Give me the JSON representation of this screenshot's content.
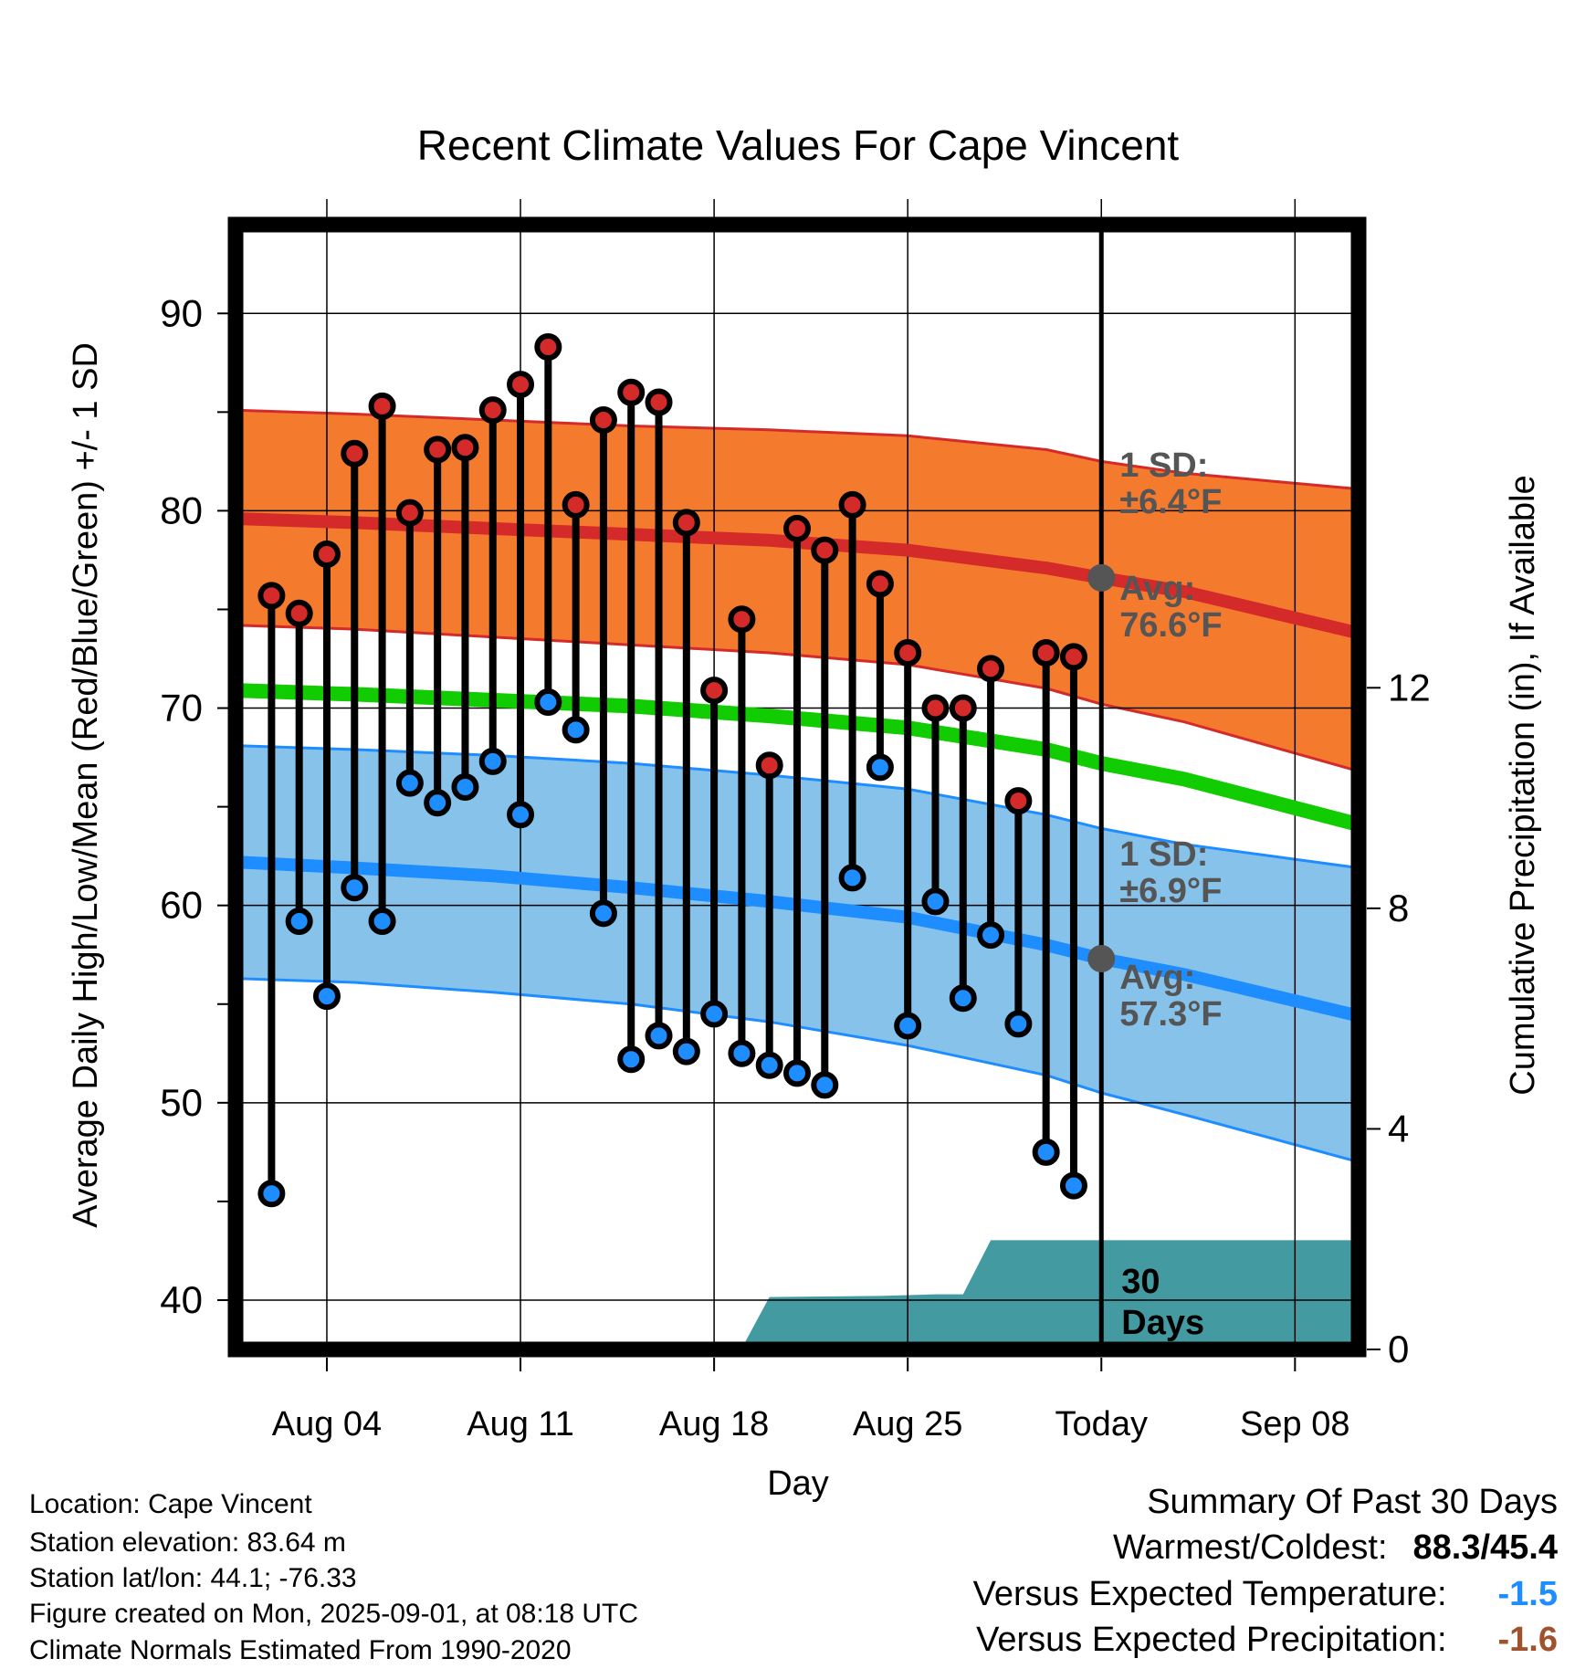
{
  "chart_data": {
    "type": "line",
    "title": "Recent Climate Values For Cape Vincent",
    "xlabel": "Day",
    "ylabel": "Average Daily High/Low/Mean (Red/Blue/Green) +/- 1 SD",
    "y2label": "Cumulative Precipitation (in), If Available",
    "x_ticks": [
      "Aug 04",
      "Aug 11",
      "Aug 18",
      "Aug 25",
      "Today",
      "Sep 08"
    ],
    "x_tick_days": [
      4,
      11,
      18,
      25,
      32,
      39
    ],
    "xlim_days": [
      0.7,
      41.3
    ],
    "today_day": 32,
    "y_ticks": [
      40,
      50,
      60,
      70,
      80,
      90
    ],
    "ylim": [
      37.5,
      94.5
    ],
    "y2_ticks": [
      0,
      4,
      8,
      12
    ],
    "y2lim": [
      0,
      20.4
    ],
    "grid": true,
    "daily_days": [
      2,
      3,
      4,
      5,
      6,
      7,
      8,
      9,
      10,
      11,
      12,
      13,
      14,
      15,
      16,
      17,
      18,
      19,
      20,
      21,
      22,
      23,
      24,
      25,
      26,
      27,
      28,
      29,
      30,
      31
    ],
    "daily_high": [
      75.7,
      74.8,
      77.8,
      82.9,
      85.3,
      79.9,
      83.1,
      83.2,
      85.1,
      86.4,
      88.3,
      80.3,
      84.6,
      86.0,
      85.5,
      79.4,
      70.9,
      74.5,
      67.1,
      79.1,
      78.0,
      80.3,
      76.3,
      72.8,
      70.0,
      70.0,
      72.0,
      65.3,
      72.8,
      72.6
    ],
    "daily_low": [
      45.4,
      59.2,
      55.4,
      60.9,
      59.2,
      66.2,
      65.2,
      66.0,
      67.3,
      64.6,
      70.3,
      68.9,
      59.6,
      52.2,
      53.4,
      52.6,
      54.5,
      52.5,
      51.9,
      51.5,
      50.9,
      61.4,
      67.0,
      53.9,
      60.2,
      55.3,
      58.5,
      54.0,
      47.5,
      45.8
    ],
    "normal_days": [
      0.7,
      5,
      10,
      15,
      20,
      25,
      30,
      32,
      35,
      41.3
    ],
    "normal_high": [
      79.6,
      79.4,
      79.1,
      78.8,
      78.5,
      78.0,
      77.1,
      76.6,
      75.9,
      73.8
    ],
    "normal_high_upper": [
      85.1,
      84.9,
      84.6,
      84.3,
      84.1,
      83.8,
      83.1,
      82.5,
      81.9,
      81.1
    ],
    "normal_high_lower": [
      74.2,
      74.0,
      73.6,
      73.2,
      72.8,
      72.2,
      71.0,
      70.2,
      69.3,
      66.8
    ],
    "normal_mean": [
      70.9,
      70.7,
      70.4,
      70.1,
      69.6,
      69.0,
      67.9,
      67.2,
      66.4,
      64.1
    ],
    "normal_low": [
      62.2,
      61.9,
      61.5,
      60.9,
      60.2,
      59.4,
      58.0,
      57.3,
      56.5,
      54.4
    ],
    "normal_low_upper": [
      68.1,
      67.9,
      67.6,
      67.2,
      66.6,
      65.9,
      64.6,
      63.9,
      63.1,
      61.9
    ],
    "normal_low_lower": [
      56.3,
      56.1,
      55.6,
      55.0,
      54.1,
      52.9,
      51.4,
      50.5,
      49.4,
      47.0
    ],
    "precip_days": [
      0.7,
      18,
      19,
      20,
      24,
      26,
      27,
      28,
      41.3
    ],
    "precip_cumulative": [
      0,
      0,
      0.02,
      0.95,
      0.97,
      1.0,
      1.0,
      1.98,
      1.98
    ],
    "high_sd_label": "1 SD:",
    "high_sd_value": "±6.4°F",
    "high_avg_label": "Avg:",
    "high_avg_value": "76.6°F",
    "low_sd_label": "1 SD:",
    "low_sd_value": "±6.9°F",
    "low_avg_label": "Avg:",
    "low_avg_value": "57.3°F",
    "precip_period_label": "30",
    "precip_period_unit": "Days",
    "colors": {
      "high_band": "#f47a2e",
      "high_line": "#d42a2a",
      "low_band": "#86c2ea",
      "low_line": "#1e8dff",
      "mean_line": "#11cc00",
      "precip_fill": "#449aa1",
      "high_dot": "#d42a2a",
      "low_dot": "#1e8dff",
      "annotation": "#555555"
    }
  },
  "footer": {
    "location": "Location: Cape Vincent",
    "elevation": "Station elevation: 83.64 m",
    "latlon": "Station lat/lon: 44.1; -76.33",
    "created": "Figure created on Mon, 2025-09-01, at 08:18 UTC",
    "normals": "Climate Normals Estimated From 1990-2020"
  },
  "summary": {
    "title": "Summary Of Past 30 Days",
    "warmest_coldest_label": "Warmest/Coldest:",
    "warmest_coldest_value": "88.3/45.4",
    "temp_label": "Versus Expected Temperature:",
    "temp_value": "-1.5",
    "temp_color": "#1e8dff",
    "precip_label": "Versus Expected Precipitation:",
    "precip_value": "-1.6",
    "precip_color": "#a0522d"
  }
}
